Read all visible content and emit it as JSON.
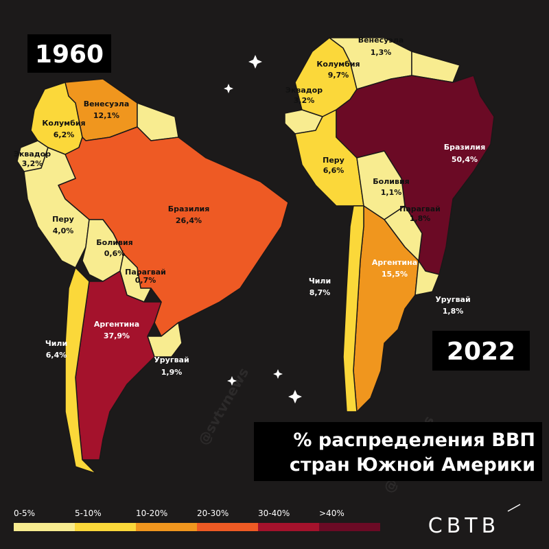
{
  "maps": [
    {
      "year": "1960",
      "countries": [
        {
          "name": "Венесуэла",
          "share": "12,1%",
          "color": "#f0961e"
        },
        {
          "name": "Колумбия",
          "share": "6,2%",
          "color": "#fbd83a"
        },
        {
          "name": "Эквадор",
          "share": "3,2%",
          "color": "#f8ec90"
        },
        {
          "name": "Перу",
          "share": "4,0%",
          "color": "#f8ec90"
        },
        {
          "name": "Бразилия",
          "share": "26,4%",
          "color": "#ee5a24"
        },
        {
          "name": "Боливия",
          "share": "0,6%",
          "color": "#f8ec90"
        },
        {
          "name": "Парагвай",
          "share": "0,7%",
          "color": "#f8ec90"
        },
        {
          "name": "Аргентина",
          "share": "37,9%",
          "color": "#a4122c"
        },
        {
          "name": "Чили",
          "share": "6,4%",
          "color": "#fbd83a"
        },
        {
          "name": "Уругвай",
          "share": "1,9%",
          "color": "#f8ec90"
        }
      ]
    },
    {
      "year": "2022",
      "countries": [
        {
          "name": "Венесуэла",
          "share": "1,3%",
          "color": "#f8ec90"
        },
        {
          "name": "Колумбия",
          "share": "9,7%",
          "color": "#fbd83a"
        },
        {
          "name": "Эквадор",
          "share": "3,2%",
          "color": "#f8ec90"
        },
        {
          "name": "Перу",
          "share": "6,6%",
          "color": "#fbd83a"
        },
        {
          "name": "Бразилия",
          "share": "50,4%",
          "color": "#6b0a25"
        },
        {
          "name": "Боливия",
          "share": "1,1%",
          "color": "#f8ec90"
        },
        {
          "name": "Парагвай",
          "share": "1,8%",
          "color": "#f8ec90"
        },
        {
          "name": "Аргентина",
          "share": "15,5%",
          "color": "#f0961e"
        },
        {
          "name": "Чили",
          "share": "8,7%",
          "color": "#fbd83a"
        },
        {
          "name": "Уругвай",
          "share": "1,8%",
          "color": "#f8ec90"
        }
      ]
    }
  ],
  "title": [
    "% распределения ВВП",
    "стран Южной Америки"
  ],
  "legend": [
    {
      "label": "0-5%",
      "color": "#f8ec90"
    },
    {
      "label": "5-10%",
      "color": "#fbd83a"
    },
    {
      "label": "10-20%",
      "color": "#f0961e"
    },
    {
      "label": "20-30%",
      "color": "#ee5a24"
    },
    {
      "label": "30-40%",
      "color": "#a4122c"
    },
    {
      "label": ">40%",
      "color": "#6b0a25"
    }
  ],
  "logo": "СВТВ",
  "watermark": "@svtvnews"
}
